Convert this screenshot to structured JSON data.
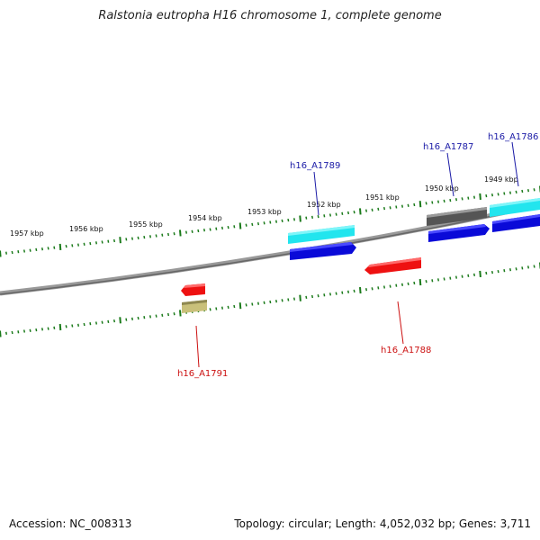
{
  "title": "Ralstonia eutropha H16 chromosome 1, complete genome",
  "footer": {
    "accession": "Accession: NC_008313",
    "summary": "Topology: circular; Length: 4,052,032 bp; Genes: 3,711"
  },
  "colors": {
    "backbone": "#888888",
    "tick": "#1a7a1a",
    "label_forward": "#1a1aa6",
    "label_reverse": "#cc1111",
    "cyan": "#22e5ee",
    "blue": "#0a0ad8",
    "red": "#ee1111",
    "gray": "#666666",
    "khaki": "#c9c07a"
  },
  "scale": {
    "labels": [
      "1957 kbp",
      "1956 kbp",
      "1955 kbp",
      "1954 kbp",
      "1953 kbp",
      "1952 kbp",
      "1951 kbp",
      "1950 kbp",
      "1949 kbp"
    ]
  },
  "gene_labels": {
    "h16_A1789": "h16_A1789",
    "h16_A1787": "h16_A1787",
    "h16_A1786": "h16_A1786",
    "h16_A1788": "h16_A1788",
    "h16_A1791": "h16_A1791"
  }
}
